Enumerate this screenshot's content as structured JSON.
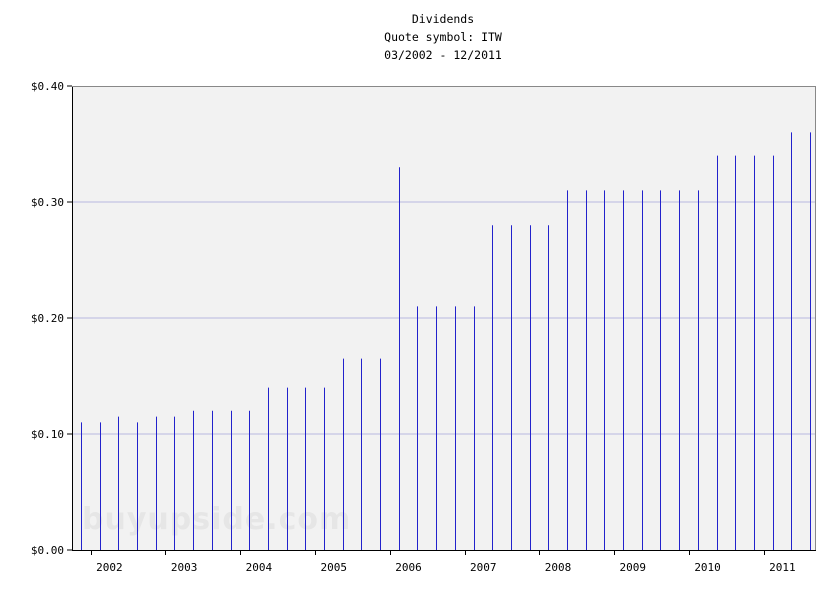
{
  "chart_data": {
    "type": "bar",
    "title_lines": [
      "Dividends",
      "Quote symbol: ITW",
      "03/2002 - 12/2011"
    ],
    "ylim": [
      0,
      0.4
    ],
    "y_ticks": [
      {
        "value": 0.0,
        "label": "$0.00"
      },
      {
        "value": 0.1,
        "label": "$0.10"
      },
      {
        "value": 0.2,
        "label": "$0.20"
      },
      {
        "value": 0.3,
        "label": "$0.30"
      },
      {
        "value": 0.4,
        "label": "$0.40"
      }
    ],
    "x_range": [
      2001.75,
      2011.7
    ],
    "x_ticks": [
      {
        "value": 2002.25,
        "label": "2002"
      },
      {
        "value": 2003.25,
        "label": "2003"
      },
      {
        "value": 2004.25,
        "label": "2004"
      },
      {
        "value": 2005.25,
        "label": "2005"
      },
      {
        "value": 2006.25,
        "label": "2006"
      },
      {
        "value": 2007.25,
        "label": "2007"
      },
      {
        "value": 2008.25,
        "label": "2008"
      },
      {
        "value": 2009.25,
        "label": "2009"
      },
      {
        "value": 2010.25,
        "label": "2010"
      },
      {
        "value": 2011.25,
        "label": "2011"
      }
    ],
    "grid": true,
    "watermark": "buyupside.com",
    "colors": {
      "bar": "#2222cc",
      "plot_bg": "#f2f2f2",
      "grid": "#b8b8e0",
      "axis": "#000000"
    },
    "points": [
      {
        "x": 2001.87,
        "y": 0.11
      },
      {
        "x": 2002.12,
        "y": 0.11
      },
      {
        "x": 2002.37,
        "y": 0.115
      },
      {
        "x": 2002.62,
        "y": 0.11
      },
      {
        "x": 2002.87,
        "y": 0.115
      },
      {
        "x": 2003.12,
        "y": 0.115
      },
      {
        "x": 2003.37,
        "y": 0.12
      },
      {
        "x": 2003.62,
        "y": 0.12
      },
      {
        "x": 2003.87,
        "y": 0.12
      },
      {
        "x": 2004.12,
        "y": 0.12
      },
      {
        "x": 2004.37,
        "y": 0.14
      },
      {
        "x": 2004.62,
        "y": 0.14
      },
      {
        "x": 2004.87,
        "y": 0.14
      },
      {
        "x": 2005.12,
        "y": 0.14
      },
      {
        "x": 2005.37,
        "y": 0.165
      },
      {
        "x": 2005.62,
        "y": 0.165
      },
      {
        "x": 2005.87,
        "y": 0.165
      },
      {
        "x": 2006.12,
        "y": 0.33
      },
      {
        "x": 2006.37,
        "y": 0.21
      },
      {
        "x": 2006.62,
        "y": 0.21
      },
      {
        "x": 2006.87,
        "y": 0.21
      },
      {
        "x": 2007.12,
        "y": 0.21
      },
      {
        "x": 2007.37,
        "y": 0.28
      },
      {
        "x": 2007.62,
        "y": 0.28
      },
      {
        "x": 2007.87,
        "y": 0.28
      },
      {
        "x": 2008.12,
        "y": 0.28
      },
      {
        "x": 2008.37,
        "y": 0.31
      },
      {
        "x": 2008.62,
        "y": 0.31
      },
      {
        "x": 2008.87,
        "y": 0.31
      },
      {
        "x": 2009.12,
        "y": 0.31
      },
      {
        "x": 2009.37,
        "y": 0.31
      },
      {
        "x": 2009.62,
        "y": 0.31
      },
      {
        "x": 2009.87,
        "y": 0.31
      },
      {
        "x": 2010.12,
        "y": 0.31
      },
      {
        "x": 2010.37,
        "y": 0.34
      },
      {
        "x": 2010.62,
        "y": 0.34
      },
      {
        "x": 2010.87,
        "y": 0.34
      },
      {
        "x": 2011.12,
        "y": 0.34
      },
      {
        "x": 2011.37,
        "y": 0.36
      },
      {
        "x": 2011.62,
        "y": 0.36
      }
    ]
  }
}
